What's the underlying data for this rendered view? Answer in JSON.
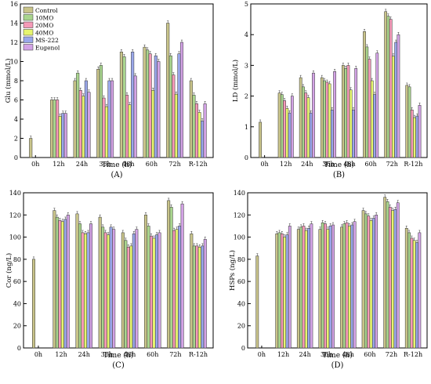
{
  "chart_data": [
    {
      "type": "bar",
      "panel_label": "(A)",
      "ylabel": "Glu (mmol/L)",
      "xlabel": "Time (h)",
      "ylim": [
        0,
        16
      ],
      "yticks": [
        0,
        2,
        4,
        6,
        8,
        10,
        12,
        14,
        16
      ],
      "legend": "top-left",
      "categories": [
        "0h",
        "12h",
        "24h",
        "36h",
        "48h",
        "60h",
        "72h",
        "R-12h"
      ],
      "series": [
        {
          "name": "Control",
          "values": [
            2.0,
            6.0,
            8.0,
            9.2,
            11.0,
            11.5,
            14.0,
            8.0
          ]
        },
        {
          "name": "10MO",
          "values": [
            null,
            6.0,
            8.8,
            9.6,
            10.5,
            11.2,
            10.6,
            6.5
          ]
        },
        {
          "name": "20MO",
          "values": [
            null,
            6.0,
            7.0,
            6.2,
            6.5,
            10.8,
            8.6,
            5.6
          ]
        },
        {
          "name": "40MO",
          "values": [
            null,
            4.3,
            6.4,
            5.3,
            5.5,
            7.0,
            6.6,
            4.7
          ]
        },
        {
          "name": "MS-222",
          "values": [
            null,
            4.6,
            8.0,
            8.0,
            11.0,
            10.6,
            10.8,
            3.8
          ]
        },
        {
          "name": "Eugenol",
          "values": [
            null,
            4.6,
            6.8,
            8.0,
            8.5,
            10.0,
            12.0,
            5.6
          ]
        }
      ]
    },
    {
      "type": "bar",
      "panel_label": "(B)",
      "ylabel": "LD (mmol/L)",
      "xlabel": "Time (h)",
      "ylim": [
        0,
        5
      ],
      "yticks": [
        0,
        1,
        2,
        3,
        4,
        5
      ],
      "categories": [
        "0h",
        "12h",
        "24h",
        "36h",
        "48h",
        "60h",
        "72h",
        "R-12h"
      ],
      "series": [
        {
          "name": "Control",
          "values": [
            1.15,
            2.1,
            2.6,
            2.6,
            3.0,
            4.1,
            4.75,
            2.35
          ]
        },
        {
          "name": "10MO",
          "values": [
            null,
            2.05,
            2.3,
            2.5,
            2.9,
            3.6,
            4.6,
            2.3
          ]
        },
        {
          "name": "20MO",
          "values": [
            null,
            1.85,
            2.1,
            2.45,
            3.0,
            3.2,
            4.5,
            1.55
          ]
        },
        {
          "name": "40MO",
          "values": [
            null,
            1.6,
            1.95,
            2.4,
            2.2,
            2.5,
            3.3,
            1.3
          ]
        },
        {
          "name": "MS-222",
          "values": [
            null,
            1.45,
            1.45,
            1.55,
            1.55,
            2.05,
            3.75,
            1.35
          ]
        },
        {
          "name": "Eugenol",
          "values": [
            null,
            2.0,
            2.75,
            2.8,
            2.9,
            3.4,
            4.0,
            1.7
          ]
        }
      ]
    },
    {
      "type": "bar",
      "panel_label": "(C)",
      "ylabel": "Cor (ng/L)",
      "xlabel": "Time (h)",
      "ylim": [
        0,
        140
      ],
      "yticks": [
        0,
        20,
        40,
        60,
        80,
        100,
        120,
        140
      ],
      "categories": [
        "0h",
        "12h",
        "24h",
        "36h",
        "48h",
        "60h",
        "72h",
        "R-12h"
      ],
      "series": [
        {
          "name": "Control",
          "values": [
            80,
            124,
            121,
            118,
            104,
            120,
            133,
            103
          ]
        },
        {
          "name": "10MO",
          "values": [
            null,
            118,
            112,
            109,
            97,
            110,
            127,
            92
          ]
        },
        {
          "name": "20MO",
          "values": [
            null,
            115,
            104,
            104,
            91,
            101,
            106,
            92
          ]
        },
        {
          "name": "40MO",
          "values": [
            null,
            114,
            103,
            102,
            92,
            99,
            107,
            91
          ]
        },
        {
          "name": "MS-222",
          "values": [
            null,
            116,
            104,
            109,
            103,
            102,
            110,
            92
          ]
        },
        {
          "name": "Eugenol",
          "values": [
            null,
            120,
            112,
            107,
            107,
            104,
            130,
            98
          ]
        }
      ]
    },
    {
      "type": "bar",
      "panel_label": "(D)",
      "ylabel": "HSPs (ng/L)",
      "xlabel": "Time (h)",
      "ylim": [
        0,
        140
      ],
      "yticks": [
        0,
        20,
        40,
        60,
        80,
        100,
        120,
        140
      ],
      "categories": [
        "0h",
        "12h",
        "24h",
        "36h",
        "48h",
        "60h",
        "72h",
        "R-12h"
      ],
      "series": [
        {
          "name": "Control",
          "values": [
            83,
            103,
            107,
            107,
            109,
            124,
            136,
            108
          ]
        },
        {
          "name": "10MO",
          "values": [
            null,
            104,
            109,
            113,
            112,
            121,
            132,
            104
          ]
        },
        {
          "name": "20MO",
          "values": [
            null,
            103,
            110,
            112,
            113,
            119,
            127,
            99
          ]
        },
        {
          "name": "40MO",
          "values": [
            null,
            100,
            106,
            107,
            110,
            115,
            124,
            97
          ]
        },
        {
          "name": "MS-222",
          "values": [
            null,
            102,
            108,
            110,
            111,
            117,
            125,
            95
          ]
        },
        {
          "name": "Eugenol",
          "values": [
            null,
            110,
            112,
            111,
            114,
            120,
            131,
            104
          ]
        }
      ]
    }
  ],
  "colors": {
    "Control": "#c9c48a",
    "10MO": "#a9d58e",
    "20MO": "#f59ab8",
    "40MO": "#e6f56f",
    "MS-222": "#9aa7ea",
    "Eugenol": "#d3a3e6"
  }
}
